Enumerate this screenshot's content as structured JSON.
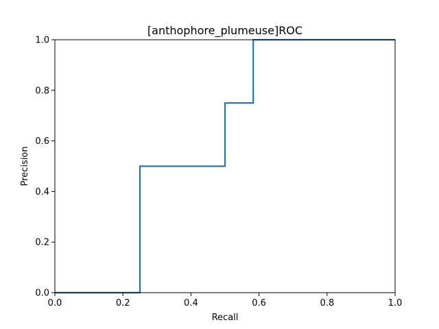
{
  "chart_data": {
    "type": "line",
    "title": "[anthophore_plumeuse]ROC",
    "xlabel": "Recall",
    "ylabel": "Precision",
    "xlim": [
      0.0,
      1.0
    ],
    "ylim": [
      0.0,
      1.0
    ],
    "xticks": [
      "0.0",
      "0.2",
      "0.4",
      "0.6",
      "0.8",
      "1.0"
    ],
    "yticks": [
      "0.0",
      "0.2",
      "0.4",
      "0.6",
      "0.8",
      "1.0"
    ],
    "grid": false,
    "step": true,
    "series": [
      {
        "color": "#1f77b4",
        "x": [
          0.0,
          0.25,
          0.25,
          0.5,
          0.5,
          0.583,
          0.583,
          1.0
        ],
        "y": [
          0.0,
          0.0,
          0.5,
          0.5,
          0.75,
          0.75,
          1.0,
          1.0
        ]
      }
    ]
  }
}
